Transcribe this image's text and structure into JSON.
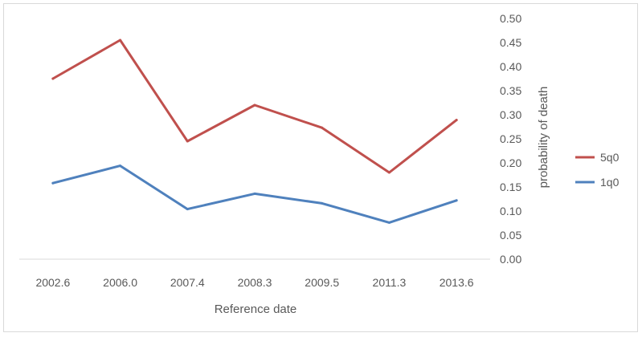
{
  "chart_data": {
    "type": "line",
    "title": "",
    "xlabel": "Reference date",
    "ylabel": "probability of death",
    "categories": [
      "2002.6",
      "2006.0",
      "2007.4",
      "2008.3",
      "2009.5",
      "2011.3",
      "2013.6"
    ],
    "ylim": [
      0,
      0.5
    ],
    "yticks": [
      "0.00",
      "0.05",
      "0.10",
      "0.15",
      "0.20",
      "0.25",
      "0.30",
      "0.35",
      "0.40",
      "0.45",
      "0.50"
    ],
    "y_axis_side": "right",
    "grid": false,
    "legend_position": "right",
    "series": [
      {
        "name": "5q0",
        "color": "#c0504d",
        "values": [
          0.375,
          0.455,
          0.245,
          0.32,
          0.273,
          0.18,
          0.289
        ]
      },
      {
        "name": "1q0",
        "color": "#4f81bd",
        "values": [
          0.158,
          0.194,
          0.104,
          0.136,
          0.116,
          0.076,
          0.122
        ]
      }
    ]
  }
}
